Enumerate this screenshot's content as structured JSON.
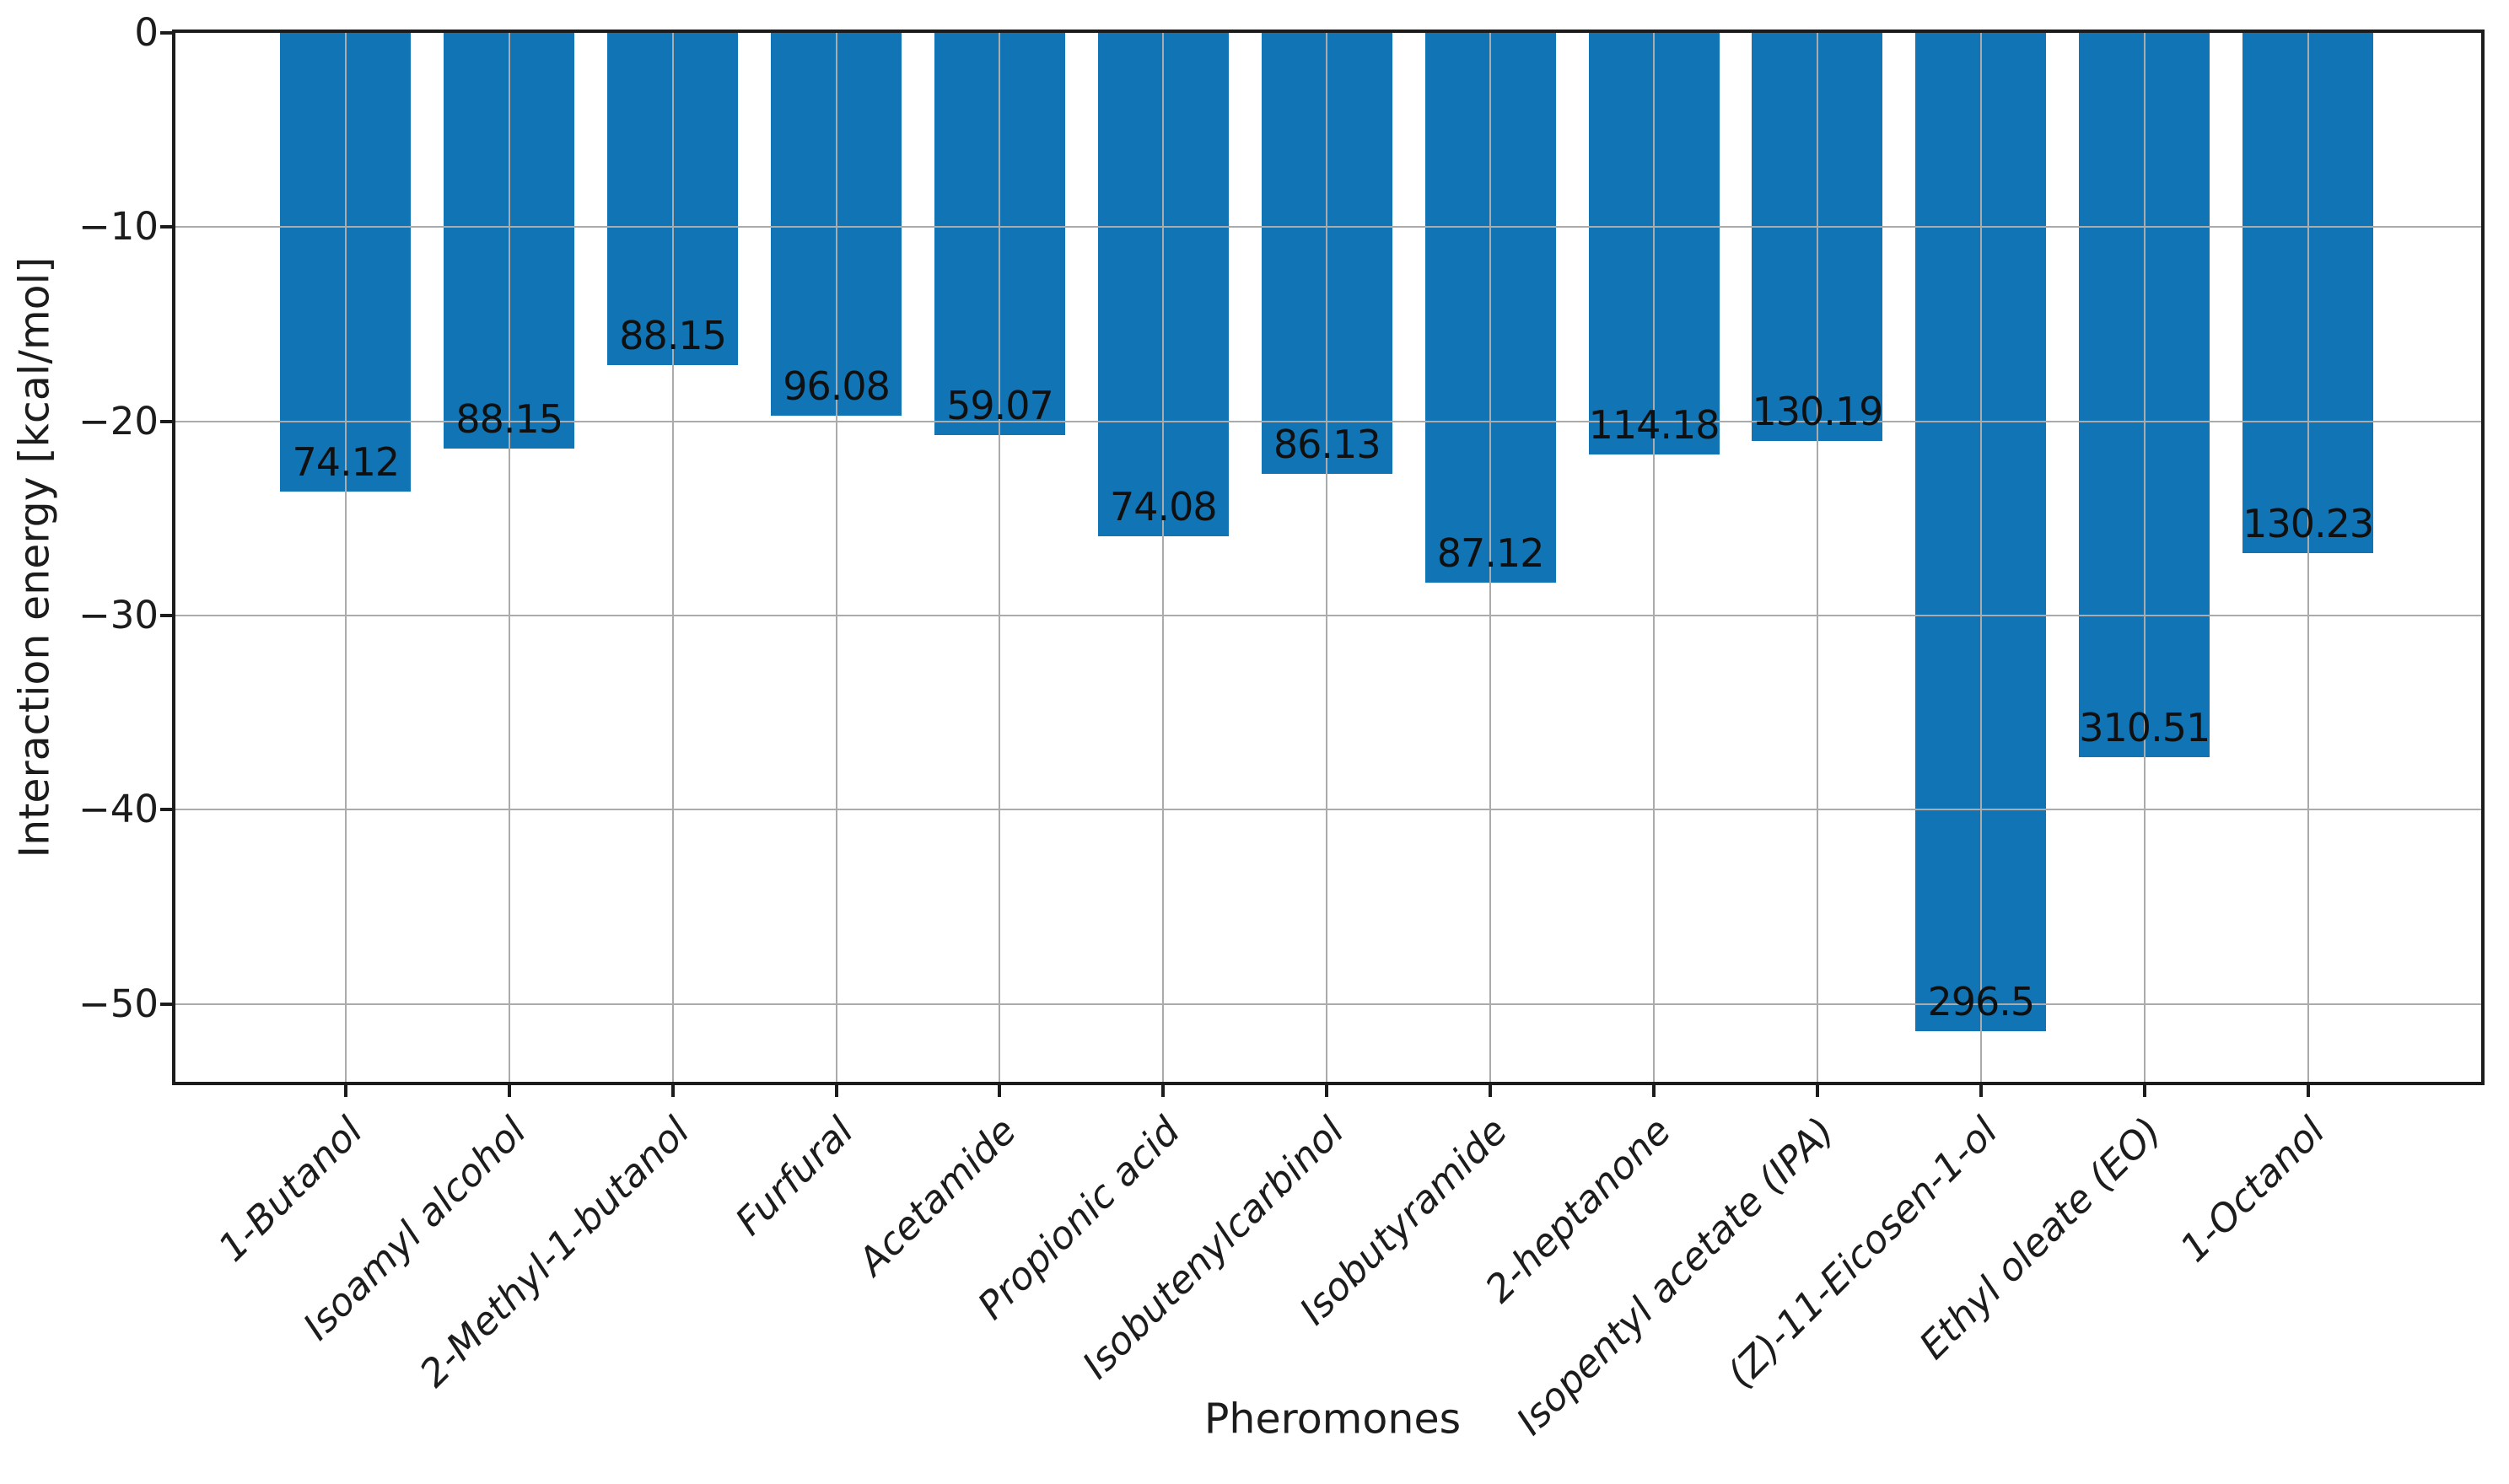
{
  "chart_data": {
    "type": "bar",
    "orientation": "vertical",
    "title": "",
    "xlabel": "Pheromones",
    "ylabel": "Interaction energy [kcal/mol]",
    "categories": [
      "1-Butanol",
      "Isoamyl alcohol",
      "2-Methyl-1-butanol",
      "Furfural",
      "Acetamide",
      "Propionic acid",
      "Isobutenylcarbinol",
      "Isobutyramide",
      "2-heptanone",
      "Isopentyl acetate (IPA)",
      "(Z)-11-Eicosen-1-ol",
      "Ethyl oleate (EO)",
      "1-Octanol"
    ],
    "values": [
      -23.6,
      -21.4,
      -17.1,
      -19.7,
      -20.7,
      -25.9,
      -22.7,
      -28.3,
      -21.7,
      -21.0,
      -51.4,
      -37.3,
      -26.8
    ],
    "bar_labels": [
      "74.12",
      "88.15",
      "88.15",
      "96.08",
      "59.07",
      "74.08",
      "86.13",
      "87.12",
      "114.18",
      "130.19",
      "296.5",
      "310.51",
      "130.23"
    ],
    "ylim": [
      -54,
      0
    ],
    "yticks": [
      0,
      -10,
      -20,
      -30,
      -40,
      -50
    ],
    "ytick_labels": [
      "0",
      "−10",
      "−20",
      "−30",
      "−40",
      "−50"
    ],
    "grid": true,
    "legend": false,
    "bar_color": "#1175b5",
    "grid_color": "#ababab",
    "axis_color": "#1c1c1c",
    "bar_label_color": "#101010"
  }
}
